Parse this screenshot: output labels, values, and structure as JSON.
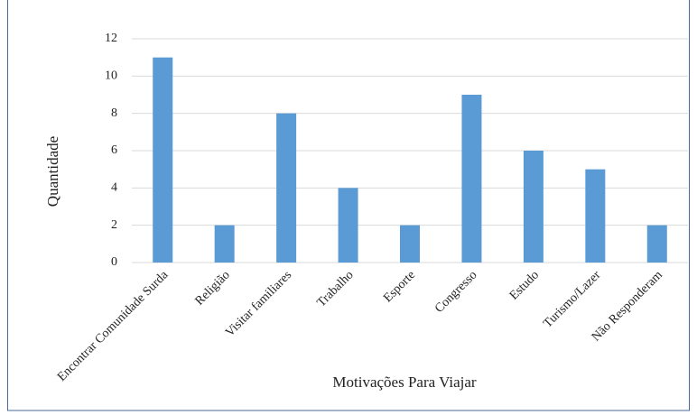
{
  "chart_data": {
    "type": "bar",
    "x_label": "Motivações Para Viajar",
    "y_label": "Quantidade",
    "categories": [
      "Encontrar Comunidade Surda",
      "Religião",
      "Visitar familiares",
      "Trabalho",
      "Esporte",
      "Congresso",
      "Estudo",
      "Turismo/Lazer",
      "Não Responderam"
    ],
    "values": [
      11,
      2,
      8,
      4,
      2,
      9,
      6,
      5,
      2
    ],
    "color": "#5b9bd5",
    "ylim": [
      0,
      12
    ],
    "yticks": [
      0,
      2,
      4,
      6,
      8,
      10,
      12
    ],
    "grid": true
  }
}
